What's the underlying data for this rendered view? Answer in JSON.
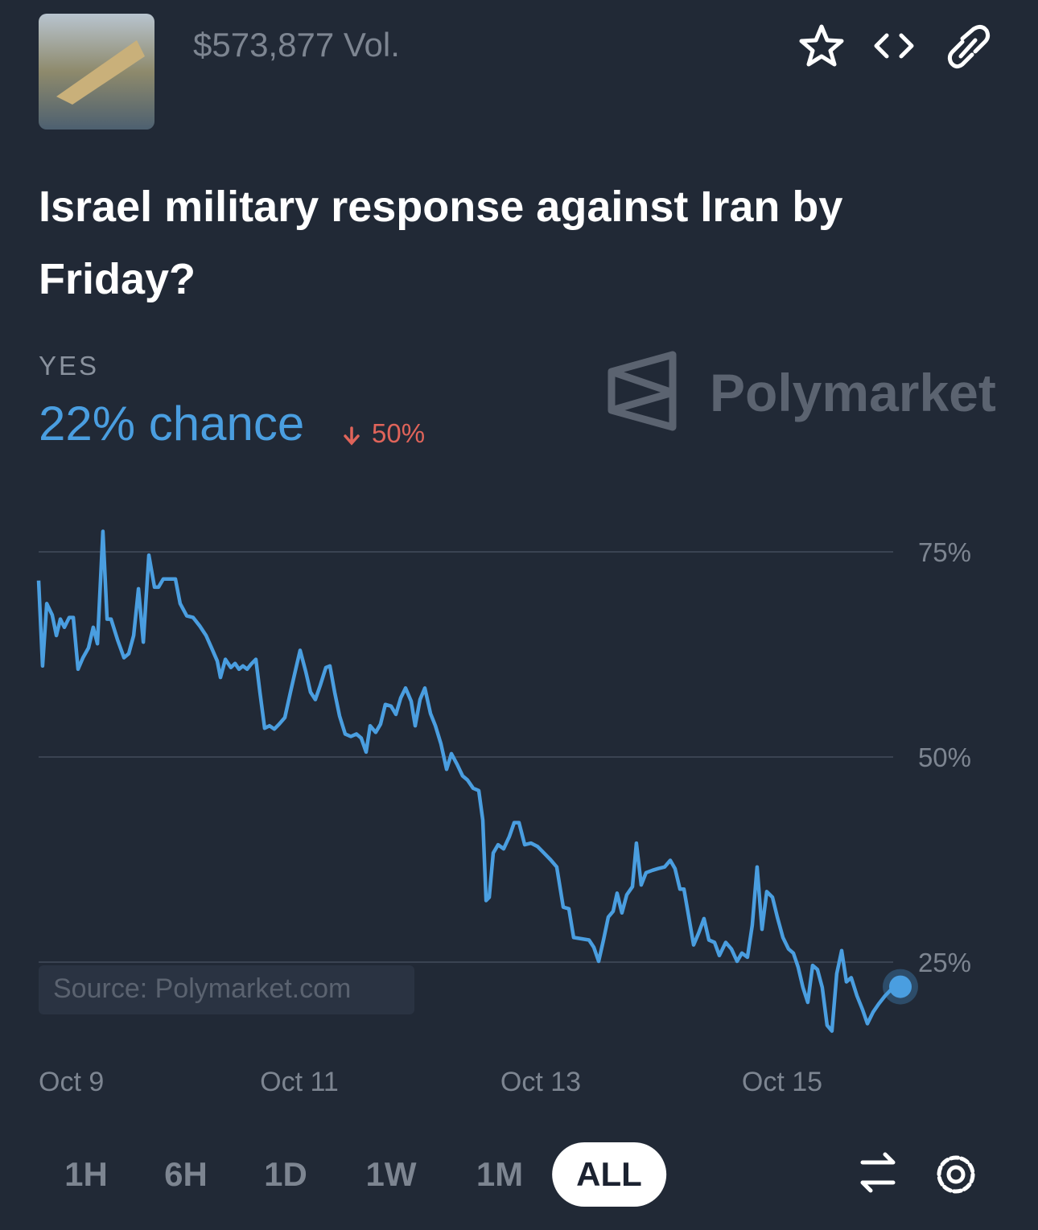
{
  "header": {
    "volume": "$573,877 Vol."
  },
  "title": "Israel military response against Iran by Friday?",
  "outcome": {
    "label": "YES",
    "chance": "22% chance",
    "change": "50%"
  },
  "watermark": "Polymarket",
  "chart_data": {
    "type": "line",
    "source": "Source: Polymarket.com",
    "x": [
      8.84,
      8.873,
      8.907,
      8.953,
      8.987,
      9.02,
      9.053,
      9.093,
      9.127,
      9.167,
      9.207,
      9.253,
      9.293,
      9.327,
      9.373,
      9.407,
      9.44,
      9.493,
      9.547,
      9.587,
      9.627,
      9.667,
      9.707,
      9.753,
      9.8,
      9.833,
      9.873,
      9.973,
      10.013,
      10.067,
      10.12,
      10.173,
      10.227,
      10.273,
      10.32,
      10.347,
      10.387,
      10.433,
      10.467,
      10.5,
      10.533,
      10.567,
      10.6,
      10.64,
      10.673,
      10.713,
      10.753,
      10.793,
      10.833,
      10.88,
      10.927,
      10.973,
      11.007,
      11.053,
      11.093,
      11.133,
      11.173,
      11.22,
      11.253,
      11.293,
      11.333,
      11.38,
      11.427,
      11.473,
      11.513,
      11.553,
      11.587,
      11.633,
      11.673,
      11.713,
      11.76,
      11.8,
      11.84,
      11.88,
      11.927,
      11.96,
      12.0,
      12.04,
      12.087,
      12.127,
      12.173,
      12.22,
      12.26,
      12.307,
      12.353,
      12.393,
      12.44,
      12.487,
      12.52,
      12.547,
      12.573,
      12.607,
      12.647,
      12.693,
      12.74,
      12.78,
      12.82,
      12.867,
      12.92,
      12.973,
      13.027,
      13.08,
      13.133,
      13.187,
      13.233,
      13.273,
      13.4,
      13.44,
      13.48,
      13.52,
      13.56,
      13.6,
      13.633,
      13.673,
      13.713,
      13.76,
      13.793,
      13.833,
      13.873,
      13.927,
      13.973,
      14.027,
      14.073,
      14.113,
      14.153,
      14.187,
      14.227,
      14.267,
      14.307,
      14.353,
      14.393,
      14.44,
      14.48,
      14.533,
      14.58,
      14.627,
      14.667,
      14.713,
      14.753,
      14.793,
      14.833,
      14.873,
      14.92,
      14.96,
      15.007,
      15.053,
      15.093,
      15.133,
      15.173,
      15.213,
      15.253,
      15.293,
      15.333,
      15.373,
      15.413,
      15.453,
      15.493,
      15.533,
      15.573,
      15.62,
      15.667,
      15.707,
      15.753,
      15.8,
      15.853,
      15.92,
      15.98
    ],
    "series": [
      {
        "color": "#4a9ee0",
        "values": [
          71.5,
          61.1,
          68.7,
          67.3,
          64.8,
          66.8,
          65.8,
          67.0,
          67.0,
          60.7,
          62.1,
          63.3,
          65.8,
          63.8,
          77.5,
          66.8,
          66.8,
          64.3,
          62.1,
          62.6,
          64.8,
          70.5,
          64.0,
          74.6,
          70.7,
          70.7,
          71.7,
          71.7,
          68.7,
          67.2,
          67.0,
          66.0,
          64.8,
          63.3,
          61.7,
          59.7,
          61.9,
          60.9,
          61.4,
          60.7,
          61.1,
          60.7,
          61.3,
          61.9,
          57.9,
          53.5,
          53.8,
          53.4,
          54.0,
          54.8,
          57.9,
          60.9,
          63.0,
          60.4,
          57.9,
          57.0,
          58.7,
          60.9,
          61.1,
          57.9,
          55.0,
          52.8,
          52.5,
          52.8,
          52.3,
          50.6,
          53.8,
          53.0,
          54.0,
          56.4,
          56.2,
          55.2,
          57.2,
          58.4,
          56.8,
          53.8,
          57.0,
          58.4,
          55.3,
          53.8,
          51.6,
          48.5,
          50.4,
          49.1,
          47.7,
          47.2,
          46.2,
          45.9,
          42.3,
          32.5,
          32.9,
          38.3,
          39.3,
          38.8,
          40.3,
          42.0,
          42.0,
          39.3,
          39.5,
          39.1,
          38.3,
          37.5,
          36.6,
          31.7,
          31.5,
          28.0,
          27.7,
          26.8,
          25.1,
          27.7,
          30.5,
          31.2,
          33.4,
          31.0,
          33.2,
          34.2,
          39.5,
          34.4,
          35.9,
          36.2,
          36.4,
          36.6,
          37.4,
          36.4,
          33.9,
          33.9,
          30.5,
          27.1,
          28.5,
          30.3,
          27.7,
          27.4,
          25.8,
          27.4,
          26.6,
          25.1,
          26.1,
          25.6,
          29.5,
          36.6,
          29.0,
          33.6,
          32.9,
          30.5,
          28.0,
          26.6,
          26.1,
          24.4,
          21.9,
          20.1,
          24.6,
          24.1,
          21.9,
          17.3,
          16.6,
          23.6,
          26.4,
          22.6,
          23.1,
          20.9,
          19.2,
          17.5,
          18.9,
          19.9,
          20.9,
          21.9,
          22
        ]
      }
    ],
    "xlim": [
      8.84,
      15.98
    ],
    "ylim": [
      15,
      80
    ],
    "xticks": [
      {
        "value": 9,
        "label": "Oct 9"
      },
      {
        "value": 11,
        "label": "Oct 11"
      },
      {
        "value": 13,
        "label": "Oct 13"
      },
      {
        "value": 15,
        "label": "Oct 15"
      }
    ],
    "yticks": [
      {
        "value": 25,
        "label": "25%"
      },
      {
        "value": 50,
        "label": "50%"
      },
      {
        "value": 75,
        "label": "75%"
      }
    ],
    "grid": true
  },
  "time_ranges": [
    "1H",
    "6H",
    "1D",
    "1W",
    "1M",
    "ALL"
  ],
  "selected_range": 5
}
